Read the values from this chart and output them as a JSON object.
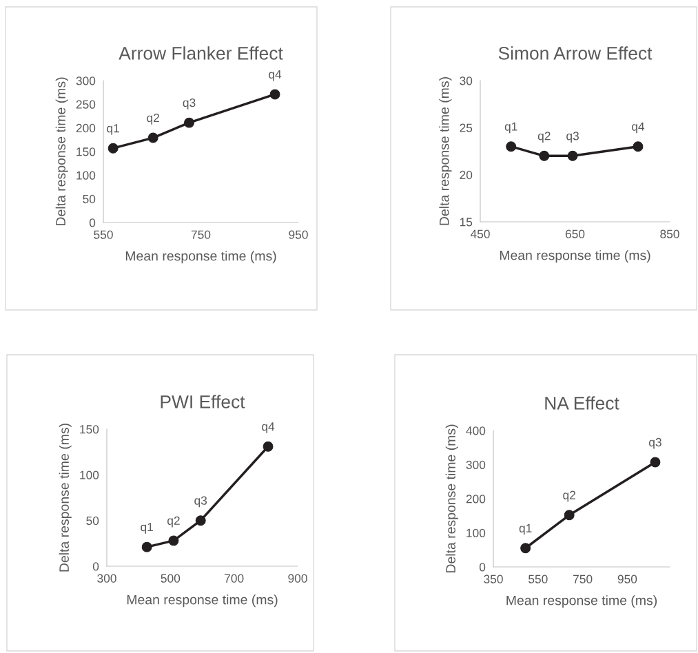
{
  "chart_data": [
    {
      "type": "line",
      "title": "Arrow Flanker Effect",
      "xlabel": "Mean response time (ms)",
      "ylabel": "Delta response time (ms)",
      "x": [
        570,
        652,
        726,
        902
      ],
      "values": [
        157,
        179,
        211,
        271
      ],
      "color": "#231f20",
      "marker": "circle",
      "line_style": "solid",
      "xlim": [
        550,
        950
      ],
      "xticks": [
        550,
        750,
        950
      ],
      "ylim": [
        0,
        300
      ],
      "yticks": [
        0,
        50,
        100,
        150,
        200,
        250,
        300
      ],
      "grid": false,
      "annotations": [
        {
          "text": "q1",
          "x": 570,
          "y": 157
        },
        {
          "text": "q2",
          "x": 652,
          "y": 179
        },
        {
          "text": "q3",
          "x": 726,
          "y": 211
        },
        {
          "text": "q4",
          "x": 902,
          "y": 271
        }
      ]
    },
    {
      "type": "line",
      "title": "Simon Arrow Effect",
      "xlabel": "Mean response time (ms)",
      "ylabel": "Delta response time (ms)",
      "x": [
        515,
        585,
        645,
        783
      ],
      "values": [
        23,
        22,
        22,
        23
      ],
      "color": "#231f20",
      "marker": "circle",
      "line_style": "solid",
      "xlim": [
        450,
        850
      ],
      "xticks": [
        450,
        650,
        850
      ],
      "ylim": [
        15,
        30
      ],
      "yticks": [
        15,
        20,
        25,
        30
      ],
      "grid": false,
      "annotations": [
        {
          "text": "q1",
          "x": 515,
          "y": 23
        },
        {
          "text": "q2",
          "x": 585,
          "y": 22
        },
        {
          "text": "q3",
          "x": 645,
          "y": 22
        },
        {
          "text": "q4",
          "x": 783,
          "y": 23
        }
      ]
    },
    {
      "type": "line",
      "title": "PWI Effect",
      "xlabel": "Mean response time (ms)",
      "ylabel": "Delta response time (ms)",
      "x": [
        426,
        510,
        595,
        807
      ],
      "values": [
        21,
        28,
        50,
        131
      ],
      "color": "#231f20",
      "marker": "circle",
      "line_style": "solid",
      "xlim": [
        300,
        900
      ],
      "xticks": [
        300,
        500,
        700,
        900
      ],
      "ylim": [
        0,
        150
      ],
      "yticks": [
        0,
        50,
        100,
        150
      ],
      "grid": false,
      "annotations": [
        {
          "text": "q1",
          "x": 426,
          "y": 21
        },
        {
          "text": "q2",
          "x": 510,
          "y": 28
        },
        {
          "text": "q3",
          "x": 595,
          "y": 50
        },
        {
          "text": "q4",
          "x": 807,
          "y": 131
        }
      ]
    },
    {
      "type": "line",
      "title": "NA Effect",
      "xlabel": "Mean response time (ms)",
      "ylabel": "Delta response time (ms)",
      "x": [
        494,
        690,
        1075
      ],
      "values": [
        55,
        152,
        307
      ],
      "color": "#231f20",
      "marker": "circle",
      "line_style": "solid",
      "xlim": [
        350,
        1140
      ],
      "xticks": [
        350,
        550,
        750,
        950
      ],
      "ylim": [
        0,
        400
      ],
      "yticks": [
        0,
        100,
        200,
        300,
        400
      ],
      "grid": false,
      "annotations": [
        {
          "text": "q1",
          "x": 494,
          "y": 55
        },
        {
          "text": "q2",
          "x": 690,
          "y": 152
        },
        {
          "text": "q3",
          "x": 1075,
          "y": 307
        }
      ]
    }
  ]
}
